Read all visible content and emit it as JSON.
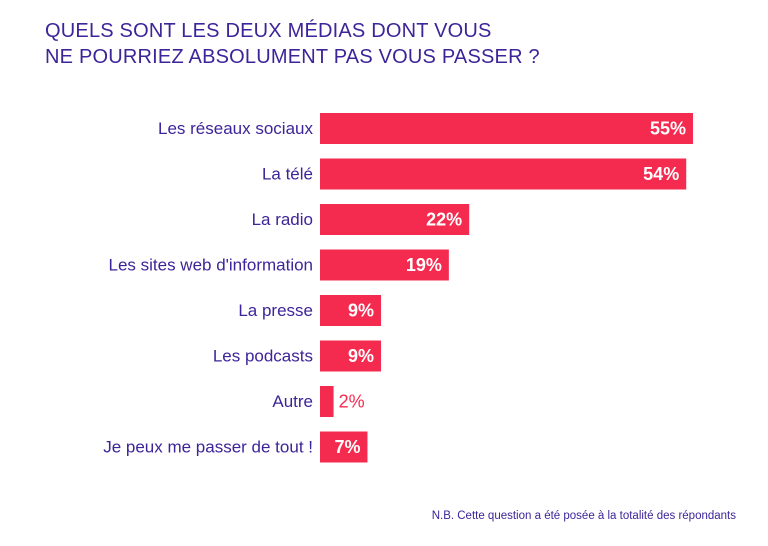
{
  "title_lines": [
    "QUELS SONT LES DEUX MÉDIAS DONT VOUS",
    "NE POURRIEZ ABSOLUMENT PAS VOUS PASSER ?"
  ],
  "note": "N.B. Cette question a été posée à la totalité des répondants",
  "colors": {
    "bar": "#f52a4f",
    "label": "#3d2499",
    "value_inside": "#ffffff",
    "value_outside": "#f52a4f"
  },
  "chart_data": {
    "type": "bar",
    "orientation": "horizontal",
    "categories": [
      "Les réseaux sociaux",
      "La télé",
      "La radio",
      "Les sites web d'information",
      "La presse",
      "Les podcasts",
      "Autre",
      "Je peux me passer de tout !"
    ],
    "values": [
      55,
      54,
      22,
      19,
      9,
      9,
      2,
      7
    ],
    "value_labels": [
      "55%",
      "54%",
      "22%",
      "19%",
      "9%",
      "9%",
      "2%",
      "7%"
    ],
    "unit": "%",
    "xlim": [
      0,
      55
    ],
    "grid": false,
    "legend": "none"
  }
}
